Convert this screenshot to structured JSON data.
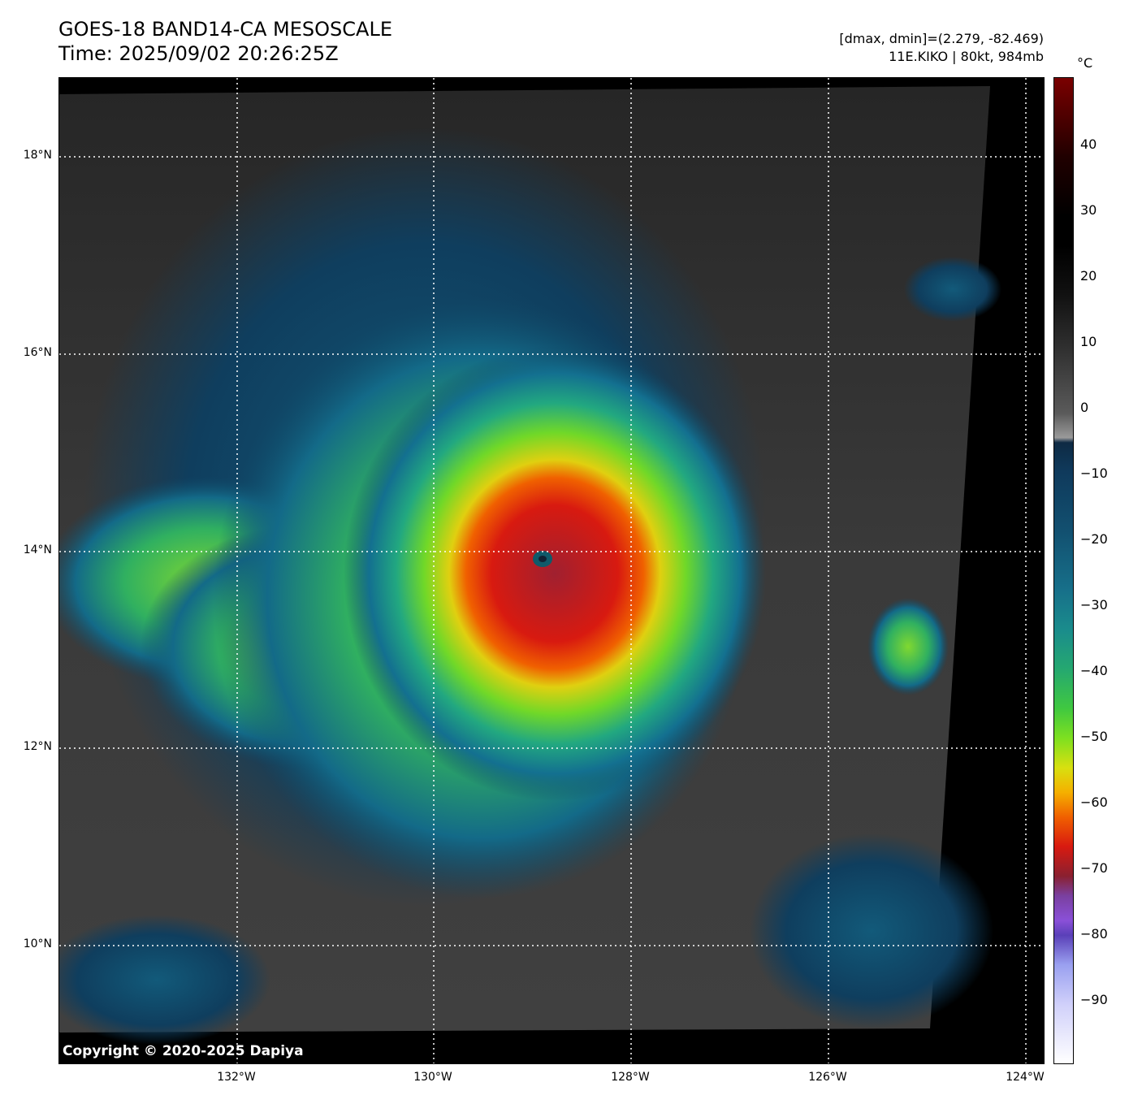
{
  "header": {
    "title": "GOES-18 BAND14-CA MESOSCALE",
    "time": "Time: 2025/09/02 20:26:25Z",
    "dminmax": "[dmax, dmin]=(2.279, -82.469)",
    "storm": "11E.KIKO | 80kt, 984mb"
  },
  "map": {
    "lat_labels": [
      "18°N",
      "16°N",
      "14°N",
      "12°N",
      "10°N"
    ],
    "lon_labels": [
      "132°W",
      "130°W",
      "128°W",
      "126°W",
      "124°W"
    ],
    "copyright": "Copyright © 2020-2025 Dapiya"
  },
  "colorbar": {
    "unit": "°C",
    "ticks": [
      "40",
      "30",
      "20",
      "10",
      "0",
      "−10",
      "−20",
      "−30",
      "−40",
      "−50",
      "−60",
      "−70",
      "−80",
      "−90"
    ],
    "range": [
      -100,
      50
    ]
  }
}
